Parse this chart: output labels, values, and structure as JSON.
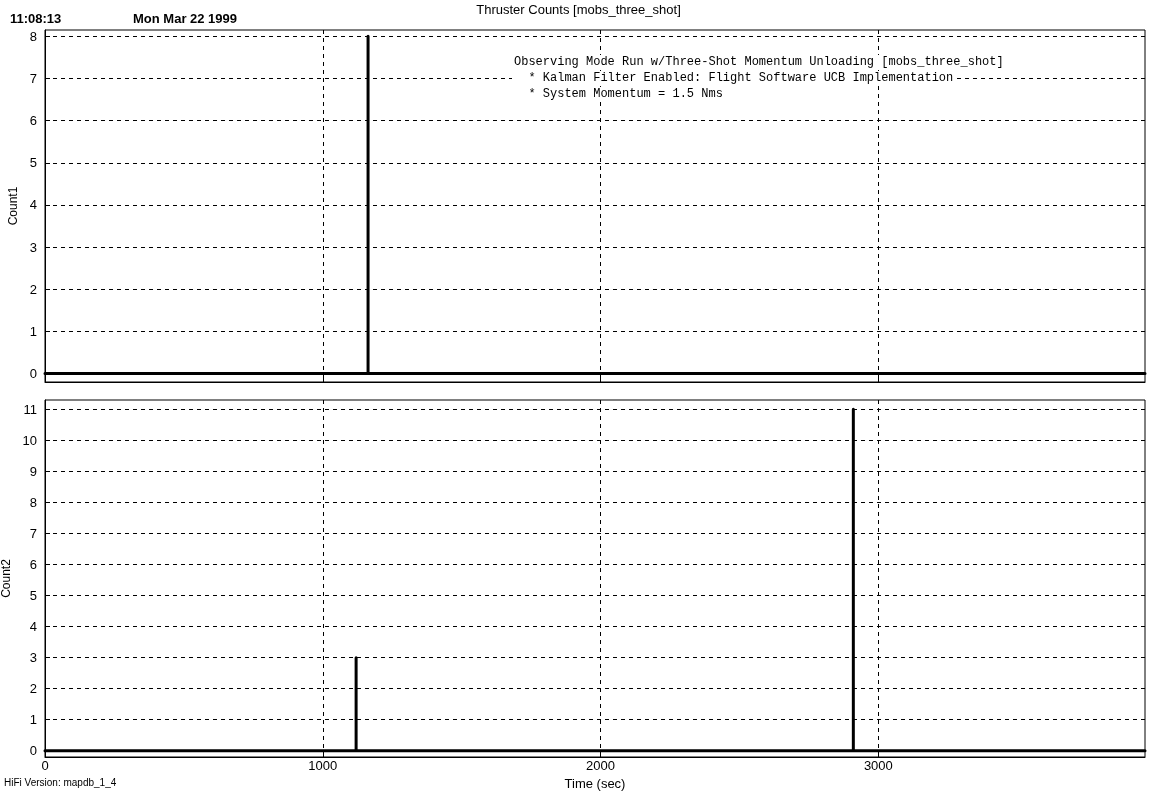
{
  "chart_data": [
    {
      "type": "line",
      "title": "Thruster Counts [mobs_three_shot]",
      "ylabel": "Count1",
      "annotations": [
        "11:08:13",
        "Mon Mar 22 1999",
        "Observing Mode Run w/Three-Shot Momentum Unloading [mobs_three_shot]",
        "  * Kalman Filter Enabled: Flight Software UCB Implementation",
        "  * System Momentum = 1.5 Nms"
      ],
      "x": [
        0,
        1163,
        1163,
        1163,
        3960
      ],
      "series": [
        {
          "color": "#000000",
          "values": [
            0,
            0,
            8,
            0,
            0
          ]
        }
      ],
      "xlim": [
        0,
        3960
      ],
      "xticks": [
        0,
        1000,
        2000,
        3000
      ],
      "ylim": [
        -0.2,
        8.15
      ],
      "yticks": [
        0,
        1,
        2,
        3,
        4,
        5,
        6,
        7,
        8
      ],
      "grid": true,
      "tick_labels": "y",
      "marker": "none",
      "line_style": "solid"
    },
    {
      "type": "line",
      "xlabel": "Time (sec)",
      "ylabel": "Count2",
      "annotations": [
        "HiFi Version: mapdb_1_4"
      ],
      "x": [
        0,
        1120,
        1120,
        1120,
        2910,
        2910,
        2910,
        3960
      ],
      "series": [
        {
          "color": "#000000",
          "values": [
            0,
            0,
            3,
            0,
            0,
            11,
            0,
            0
          ]
        }
      ],
      "xlim": [
        0,
        3960
      ],
      "xticks": [
        0,
        1000,
        2000,
        3000
      ],
      "ylim": [
        -0.2,
        11.3
      ],
      "yticks": [
        0,
        1,
        2,
        3,
        4,
        5,
        6,
        7,
        8,
        9,
        10,
        11
      ],
      "grid": true,
      "marker": "none",
      "line_style": "solid"
    }
  ]
}
